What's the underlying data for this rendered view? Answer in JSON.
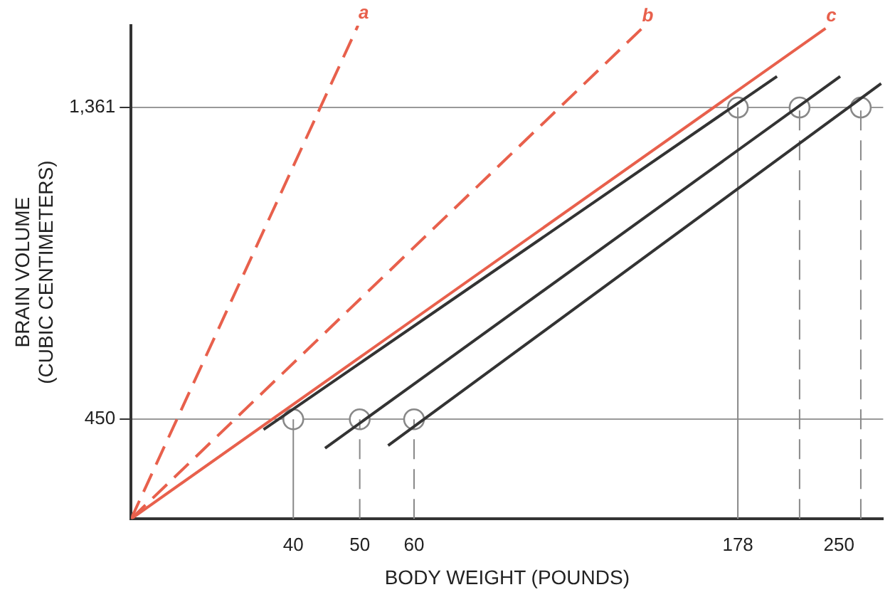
{
  "chart_data": {
    "type": "line",
    "xlabel": "BODY WEIGHT (POUNDS)",
    "ylabel": "BRAIN VOLUME\n(CUBIC CENTIMETERS)",
    "log": "xy",
    "xlim": [
      23.2,
      290
    ],
    "ylim": [
      316,
      1820
    ],
    "xticks": [
      40,
      50,
      60,
      178,
      250
    ],
    "yticks": [
      450,
      {
        "value": 1361,
        "label": "1,361"
      }
    ],
    "grid": "y",
    "legend": false,
    "marker": "none",
    "series": [
      {
        "name": "a",
        "color": "#e8604c",
        "line_style": "dashed",
        "x": [
          23.2,
          49.7
        ],
        "values": [
          316,
          1820
        ]
      },
      {
        "name": "b",
        "color": "#e8604c",
        "line_style": "dashed",
        "x": [
          23.2,
          129
        ],
        "values": [
          316,
          1802
        ]
      },
      {
        "name": "c",
        "color": "#e8604c",
        "line_style": "solid",
        "x": [
          23.2,
          239
        ],
        "values": [
          316,
          1802
        ]
      },
      {
        "color": "#333333",
        "x": [
          36.2,
          203
        ],
        "values": [
          434,
          1520
        ]
      },
      {
        "color": "#333333",
        "x": [
          44.5,
          251
        ],
        "values": [
          406,
          1520
        ]
      },
      {
        "color": "#333333",
        "x": [
          55,
          288
        ],
        "values": [
          410,
          1482
        ]
      },
      {
        "color": "#888888",
        "x": [
          40,
          40
        ],
        "values": [
          316,
          450
        ]
      },
      {
        "color": "#888888",
        "line_style": "dashed",
        "x": [
          50,
          50
        ],
        "values": [
          316,
          450
        ]
      },
      {
        "color": "#888888",
        "line_style": "dashed",
        "x": [
          60,
          60
        ],
        "values": [
          316,
          450
        ]
      },
      {
        "color": "#888888",
        "x": [
          178,
          178
        ],
        "values": [
          316,
          1361
        ]
      },
      {
        "color": "#888888",
        "line_style": "dashed",
        "x": [
          219,
          219
        ],
        "values": [
          316,
          1361
        ]
      },
      {
        "color": "#888888",
        "line_style": "dashed",
        "x": [
          269,
          269
        ],
        "values": [
          316,
          1361
        ]
      },
      {
        "type": "scatter",
        "color": "#888888",
        "marker": "circle",
        "x": [
          40,
          50,
          60,
          178,
          219,
          269
        ],
        "values": [
          450,
          450,
          450,
          1361,
          1361,
          1361
        ]
      }
    ]
  }
}
